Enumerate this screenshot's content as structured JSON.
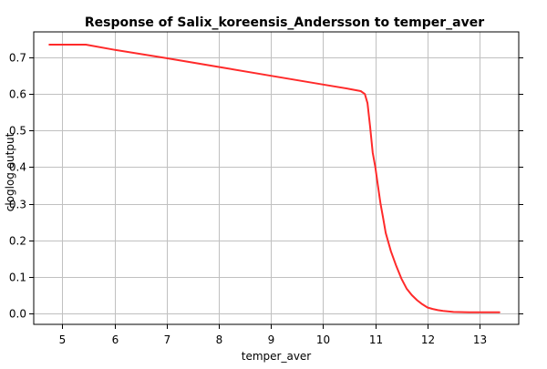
{
  "chart_data": {
    "type": "line",
    "title": "Response of Salix_koreensis_Andersson to temper_aver",
    "xlabel": "temper_aver",
    "ylabel": "cloglog output",
    "xlim": [
      4.45,
      13.75
    ],
    "ylim": [
      -0.03,
      0.77
    ],
    "xticks": [
      5,
      6,
      7,
      8,
      9,
      10,
      11,
      12,
      13
    ],
    "yticks": [
      0.0,
      0.1,
      0.2,
      0.3,
      0.4,
      0.5,
      0.6,
      0.7
    ],
    "ytick_labels": [
      "0.0",
      "0.1",
      "0.2",
      "0.3",
      "0.4",
      "0.5",
      "0.6",
      "0.7"
    ],
    "grid": true,
    "legend": "none",
    "series": [
      {
        "color": "#ff2a2a",
        "x": [
          4.75,
          5.45,
          6.0,
          7.0,
          8.0,
          9.0,
          10.0,
          10.5,
          10.72,
          10.8,
          10.85,
          10.9,
          10.95,
          11.0,
          11.05,
          11.1,
          11.15,
          11.2,
          11.3,
          11.4,
          11.5,
          11.6,
          11.7,
          11.8,
          11.9,
          12.0,
          12.1,
          12.2,
          12.3,
          12.5,
          12.8,
          13.1,
          13.38
        ],
        "y": [
          0.735,
          0.735,
          0.721,
          0.698,
          0.674,
          0.65,
          0.626,
          0.614,
          0.608,
          0.6,
          0.575,
          0.51,
          0.44,
          0.4,
          0.35,
          0.3,
          0.26,
          0.22,
          0.17,
          0.13,
          0.095,
          0.068,
          0.05,
          0.036,
          0.025,
          0.016,
          0.012,
          0.009,
          0.007,
          0.004,
          0.003,
          0.003,
          0.003
        ]
      }
    ]
  }
}
